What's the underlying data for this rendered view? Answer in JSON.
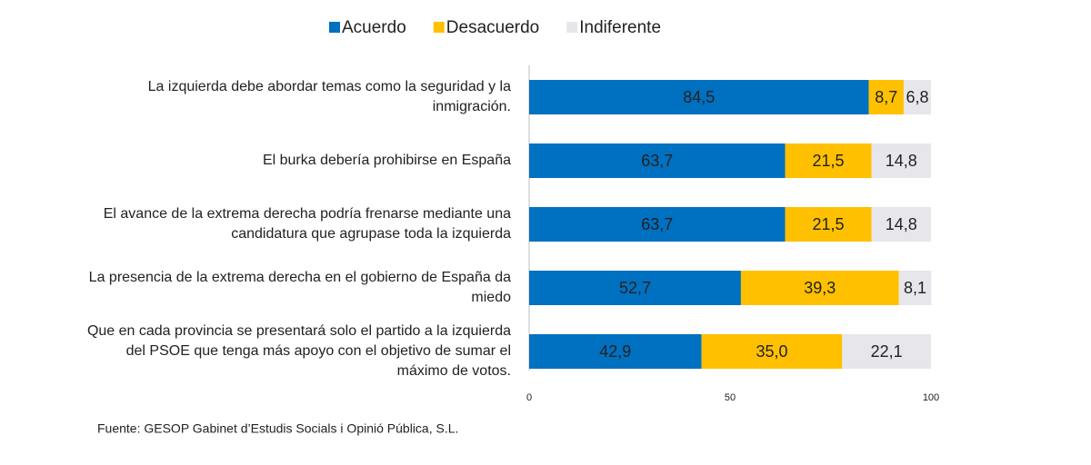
{
  "chart_data": {
    "type": "stacked_barh",
    "categories": [
      "La izquierda debe abordar temas como la seguridad y la inmigración.",
      "El burka debería prohibirse en España",
      "El avance de la extrema derecha podría frenarse mediante una candidatura que agrupase toda la izquierda",
      "La presencia de la extrema derecha en el gobierno de España da miedo",
      "Que en cada provincia se presentará solo el partido a la izquierda del PSOE que tenga más apoyo con el objetivo de sumar el máximo de votos."
    ],
    "series": [
      {
        "name": "Acuerdo",
        "color": "#0070c0",
        "label_color": "#ffffff",
        "values": [
          84.5,
          63.7,
          63.7,
          52.7,
          42.9
        ],
        "value_labels": [
          "84,5",
          "63,7",
          "63,7",
          "52,7",
          "42,9"
        ]
      },
      {
        "name": "Desacuerdo",
        "color": "#ffc000",
        "label_color": "#333333",
        "values": [
          8.7,
          21.5,
          21.5,
          39.3,
          35.0
        ],
        "value_labels": [
          "8,7",
          "21,5",
          "21,5",
          "39,3",
          "35,0"
        ]
      },
      {
        "name": "Indiferente",
        "color": "#e7e6eb",
        "label_color": "#333333",
        "values": [
          6.8,
          14.8,
          14.8,
          8.1,
          22.1
        ],
        "value_labels": [
          "6,8",
          "14,8",
          "14,8",
          "8,1",
          "22,1"
        ]
      }
    ],
    "xlim": [
      0,
      100
    ],
    "xticks": [
      0,
      50,
      100
    ],
    "grid": false,
    "legend": "top",
    "source": "Fuente: GESOP Gabinet d’Estudis Socials i Opinió Pública, S.L."
  }
}
